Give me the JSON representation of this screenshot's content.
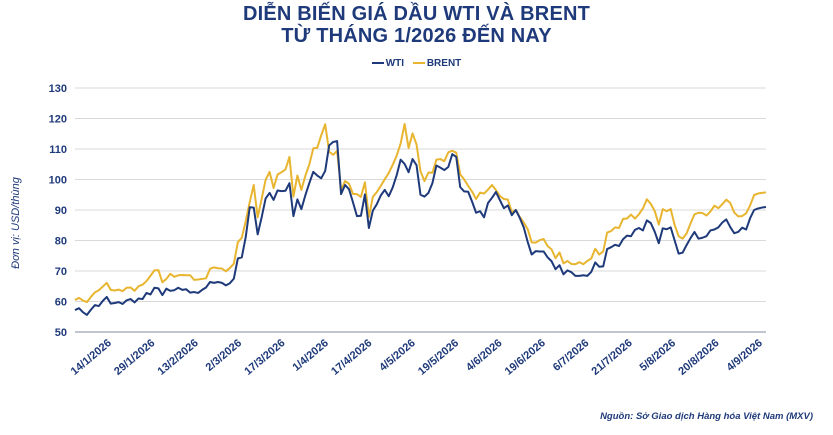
{
  "chart_data": {
    "type": "line",
    "title_line1": "DIỄN BIẾN GIÁ DẦU WTI VÀ BRENT",
    "title_line2": "TỪ THÁNG 1/2026 ĐẾN NAY",
    "ylabel": "Đơn vị: USD/thùng",
    "source": "Nguồn: Sở Giao dịch Hàng hóa Việt Nam (MXV)",
    "ylim": [
      50,
      130
    ],
    "yticks": [
      50,
      60,
      70,
      80,
      90,
      100,
      110,
      120,
      130
    ],
    "legend_position": "top-center",
    "grid": "horizontal",
    "x_tick_labels": [
      "14/1/2026",
      "29/1/2026",
      "13/2/2026",
      "2/3/2026",
      "17/3/2026",
      "1/4/2026",
      "17/4/2026",
      "4/5/2026",
      "19/5/2026",
      "4/6/2026",
      "19/6/2026",
      "6/7/2026",
      "21/7/2026",
      "5/8/2026",
      "20/8/2026",
      "4/9/2026"
    ],
    "series": [
      {
        "name": "WTI",
        "color": "#1f3a7a",
        "values": [
          57.2,
          57.8,
          56.5,
          55.6,
          57.3,
          58.8,
          58.5,
          60.2,
          61.5,
          59.3,
          59.5,
          59.8,
          59.2,
          60.4,
          60.8,
          59.7,
          61.0,
          60.8,
          62.8,
          62.3,
          64.5,
          64.3,
          62.1,
          64.2,
          63.5,
          63.7,
          64.5,
          63.8,
          64.0,
          62.9,
          63.1,
          62.8,
          63.8,
          64.6,
          66.4,
          66.1,
          66.4,
          66.1,
          65.3,
          66.0,
          67.5,
          74.1,
          74.5,
          81.2,
          90.9,
          90.8,
          82.0,
          87.6,
          93.8,
          95.6,
          93.3,
          96.4,
          96.2,
          96.3,
          98.8,
          88.0,
          93.5,
          90.3,
          94.8,
          98.8,
          102.5,
          101.3,
          100.4,
          102.8,
          111.2,
          112.3,
          112.6,
          95.2,
          98.2,
          96.8,
          92.5,
          88.0,
          88.1,
          95.1,
          84.1,
          89.8,
          91.9,
          94.8,
          96.6,
          94.5,
          97.4,
          101.4,
          106.5,
          105.1,
          102.4,
          106.7,
          104.7,
          95.0,
          94.4,
          95.6,
          98.8,
          104.6,
          103.9,
          103.1,
          104.1,
          108.3,
          107.4,
          97.5,
          96.1,
          96.0,
          92.7,
          89.1,
          89.6,
          87.6,
          92.3,
          94.0,
          95.9,
          93.2,
          90.6,
          91.5,
          88.3,
          90.0,
          87.4,
          84.3,
          79.5,
          75.4,
          76.5,
          76.4,
          76.4,
          74.5,
          73.2,
          70.6,
          71.9,
          68.9,
          70.2,
          69.6,
          68.4,
          68.4,
          68.6,
          68.4,
          69.7,
          72.8,
          71.4,
          71.5,
          77.2,
          77.8,
          78.6,
          78.2,
          80.4,
          81.6,
          81.4,
          83.5,
          84.1,
          83.3,
          86.6,
          85.7,
          82.8,
          79.1,
          84.0,
          83.7,
          84.3,
          80.0,
          75.7,
          76.0,
          78.5,
          80.8,
          82.8,
          80.6,
          80.9,
          81.4,
          83.3,
          83.6,
          84.3,
          85.9,
          86.9,
          84.4,
          82.4,
          82.8,
          84.2,
          83.6,
          87.3,
          90.0,
          90.5,
          90.8,
          91.0
        ]
      },
      {
        "name": "BRENT",
        "color": "#e8b530",
        "values": [
          60.5,
          61.2,
          60.3,
          59.8,
          61.5,
          63.0,
          63.7,
          64.9,
          66.1,
          63.8,
          63.6,
          63.9,
          63.4,
          64.5,
          64.6,
          63.5,
          65.0,
          65.5,
          66.7,
          68.4,
          70.2,
          70.3,
          66.3,
          67.4,
          69.1,
          68.1,
          68.6,
          68.7,
          68.6,
          68.6,
          67.1,
          67.2,
          67.4,
          67.6,
          70.7,
          71.2,
          70.9,
          70.8,
          69.9,
          71.0,
          72.4,
          79.4,
          80.9,
          86.4,
          92.6,
          98.2,
          87.6,
          93.6,
          99.9,
          102.5,
          97.2,
          101.6,
          102.4,
          103.3,
          107.4,
          94.4,
          101.3,
          96.6,
          101.2,
          104.9,
          110.2,
          110.4,
          114.5,
          118.1,
          109.1,
          108.1,
          109.4,
          96.5,
          99.5,
          98.6,
          95.3,
          95.2,
          94.3,
          99.1,
          87.7,
          94.3,
          95.9,
          97.9,
          100.1,
          102.1,
          104.8,
          107.8,
          111.8,
          118.2,
          110.3,
          115.1,
          111.5,
          102.7,
          99.5,
          102.3,
          102.2,
          106.5,
          106.7,
          106.0,
          108.9,
          109.4,
          108.8,
          101.7,
          100.0,
          97.9,
          96.0,
          93.6,
          95.7,
          95.4,
          96.7,
          98.2,
          96.5,
          94.6,
          93.6,
          93.4,
          89.3,
          90.0,
          87.7,
          85.9,
          83.7,
          79.4,
          79.3,
          80.1,
          80.5,
          78.2,
          77.1,
          74.2,
          76.1,
          72.5,
          73.3,
          72.3,
          72.2,
          72.9,
          72.2,
          73.3,
          74.1,
          77.3,
          75.4,
          76.4,
          82.6,
          83.1,
          84.3,
          84.1,
          87.1,
          87.2,
          88.5,
          87.2,
          88.6,
          90.5,
          93.5,
          92.0,
          89.6,
          85.2,
          90.3,
          89.6,
          90.3,
          85.1,
          81.4,
          80.6,
          82.3,
          85.6,
          88.6,
          89.1,
          89.0,
          88.2,
          89.5,
          91.4,
          90.6,
          91.9,
          93.4,
          92.3,
          89.2,
          87.9,
          88.0,
          88.9,
          91.5,
          94.9,
          95.4,
          95.6,
          95.8
        ]
      }
    ]
  }
}
